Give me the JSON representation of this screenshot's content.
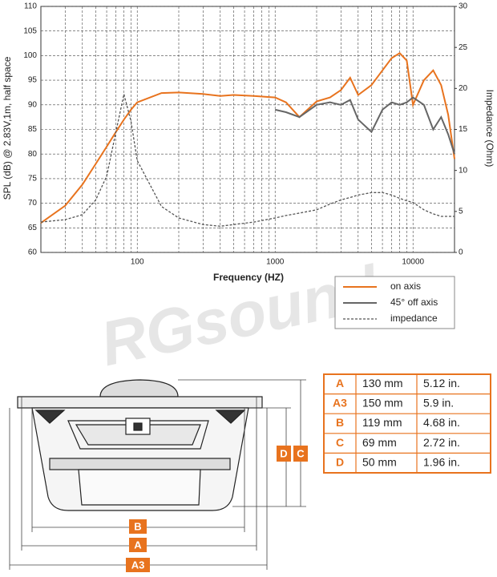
{
  "chart_data": {
    "type": "line",
    "xlabel": "Frequency (HZ)",
    "ylabel": "SPL (dB) @ 2.83V,1m, half space",
    "y2label": "Impedance (Ohm)",
    "watermark": "RGsound",
    "log_x": true,
    "grid": true,
    "xlim": [
      20,
      20000
    ],
    "xticks": [
      100,
      1000,
      10000
    ],
    "xminorticks": [
      30,
      40,
      50,
      60,
      70,
      80,
      90,
      200,
      300,
      400,
      500,
      600,
      700,
      800,
      900,
      2000,
      3000,
      4000,
      5000,
      6000,
      7000,
      8000,
      9000
    ],
    "ylim": [
      60,
      110
    ],
    "yticks": [
      60,
      65,
      70,
      75,
      80,
      85,
      90,
      95,
      100,
      105,
      110
    ],
    "y2lim": [
      0,
      30
    ],
    "y2ticks": [
      0,
      5,
      10,
      15,
      20,
      25,
      30
    ],
    "x": [
      20,
      30,
      40,
      50,
      60,
      70,
      80,
      90,
      100,
      150,
      200,
      300,
      400,
      500,
      700,
      1000,
      1200,
      1500,
      2000,
      2500,
      3000,
      3500,
      4000,
      5000,
      6000,
      7000,
      8000,
      9000,
      10000,
      12000,
      14000,
      16000,
      18000,
      20000
    ],
    "series": [
      {
        "name": "on axis",
        "color": "#e8731e",
        "dash": false,
        "values": [
          66,
          69.5,
          73.8,
          78,
          81.5,
          84.5,
          87,
          89,
          90.5,
          92.4,
          92.5,
          92.2,
          91.8,
          92,
          91.8,
          91.5,
          90.5,
          87.5,
          90.7,
          91.5,
          93,
          95.5,
          92,
          94,
          97,
          99.5,
          100.5,
          99,
          90,
          95,
          97,
          94,
          88,
          79
        ]
      },
      {
        "name": "45° off axis",
        "color": "#666666",
        "dash": false,
        "values": [
          null,
          null,
          null,
          null,
          null,
          null,
          null,
          null,
          null,
          null,
          null,
          null,
          null,
          null,
          null,
          89,
          88.5,
          87.5,
          90,
          90.5,
          90,
          91,
          87,
          84.5,
          89,
          90.5,
          90,
          90.5,
          91.5,
          90,
          85,
          87.5,
          84,
          80
        ]
      },
      {
        "name": "impedance",
        "color": "#555555",
        "dash": true,
        "axis": "y2",
        "values": [
          3.7,
          4.0,
          4.6,
          6.4,
          9.3,
          14.7,
          19.3,
          16,
          11.2,
          5.6,
          4.2,
          3.4,
          3.2,
          3.4,
          3.7,
          4.2,
          4.5,
          4.8,
          5.2,
          5.9,
          6.4,
          6.7,
          7,
          7.3,
          7.3,
          7,
          6.6,
          6.3,
          6.1,
          5.2,
          4.7,
          4.4,
          4.4,
          4.4
        ]
      }
    ]
  },
  "dimensions": {
    "labels": {
      "B": "B",
      "A": "A",
      "A3": "A3",
      "D": "D",
      "C": "C"
    },
    "table": {
      "rows": [
        [
          "A",
          "130  mm",
          "5.12 in."
        ],
        [
          "A3",
          "150  mm",
          "5.9 in."
        ],
        [
          "B",
          "119 mm",
          "4.68 in."
        ],
        [
          "C",
          "69 mm",
          "2.72 in."
        ],
        [
          "D",
          "50 mm",
          "1.96 in."
        ]
      ]
    }
  }
}
